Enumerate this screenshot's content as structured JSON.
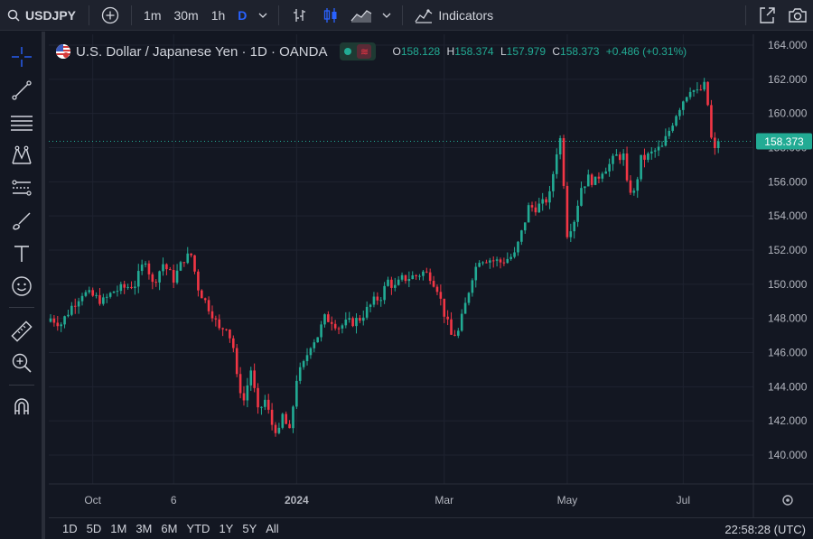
{
  "toolbar": {
    "symbol": "USDJPY",
    "intervals": [
      "1m",
      "30m",
      "1h",
      "D"
    ],
    "indicators_label": "Indicators"
  },
  "legend": {
    "title": "U.S. Dollar / Japanese Yen · 1D · OANDA",
    "open_label": "O",
    "open": "158.128",
    "high_label": "H",
    "high": "158.374",
    "low_label": "L",
    "low": "157.979",
    "close_label": "C",
    "close": "158.373",
    "change": "+0.486 (+0.31%)",
    "indicator_symbol": "≋"
  },
  "bottom": {
    "ranges": [
      "1D",
      "5D",
      "1M",
      "3M",
      "6M",
      "YTD",
      "1Y",
      "5Y",
      "All"
    ],
    "clock": "22:58:28 (UTC)"
  },
  "colors": {
    "up": "#22ab94",
    "down": "#f23645",
    "accent": "#2962ff",
    "price_label": "#22ab94"
  },
  "chart_data": {
    "type": "candlestick",
    "title": "U.S. Dollar / Japanese Yen · 1D · OANDA",
    "y_ticks": [
      "164.000",
      "162.000",
      "160.000",
      "158.000",
      "156.000",
      "154.000",
      "152.000",
      "150.000",
      "148.000",
      "146.000",
      "144.000",
      "142.000",
      "140.000"
    ],
    "ylim": [
      139,
      164.6
    ],
    "x_ticks": [
      "Oct",
      "6",
      "2024",
      "Mar",
      "May",
      "Jul"
    ],
    "x_tick_index": [
      12,
      35,
      70,
      112,
      147,
      180
    ],
    "last_price": "158.373",
    "last_value": 158.373,
    "series": {
      "name": "USDJPY",
      "close_path": [
        [
          0,
          148.0
        ],
        [
          3,
          147.7
        ],
        [
          6,
          148.7
        ],
        [
          9,
          149.5
        ],
        [
          12,
          149.3
        ],
        [
          15,
          149.0
        ],
        [
          18,
          149.6
        ],
        [
          21,
          149.8
        ],
        [
          24,
          150.0
        ],
        [
          27,
          151.5
        ],
        [
          29,
          150.0
        ],
        [
          32,
          151.2
        ],
        [
          35,
          150.3
        ],
        [
          38,
          151.5
        ],
        [
          40,
          151.7
        ],
        [
          42,
          149.8
        ],
        [
          44,
          149.0
        ],
        [
          46,
          148.3
        ],
        [
          48,
          147.3
        ],
        [
          50,
          147.6
        ],
        [
          52,
          146.3
        ],
        [
          53,
          144.5
        ],
        [
          55,
          143.2
        ],
        [
          57,
          145.0
        ],
        [
          59,
          142.5
        ],
        [
          61,
          143.2
        ],
        [
          63,
          141.8
        ],
        [
          65,
          141.3
        ],
        [
          66,
          142.3
        ],
        [
          68,
          141.3
        ],
        [
          70,
          144.5
        ],
        [
          72,
          145.3
        ],
        [
          74,
          146.5
        ],
        [
          76,
          147.0
        ],
        [
          78,
          148.0
        ],
        [
          80,
          147.9
        ],
        [
          82,
          147.5
        ],
        [
          84,
          147.7
        ],
        [
          86,
          147.8
        ],
        [
          88,
          148.0
        ],
        [
          90,
          148.5
        ],
        [
          92,
          149.0
        ],
        [
          94,
          149.3
        ],
        [
          96,
          150.2
        ],
        [
          98,
          149.8
        ],
        [
          100,
          150.3
        ],
        [
          102,
          150.4
        ],
        [
          104,
          150.5
        ],
        [
          106,
          150.7
        ],
        [
          108,
          150.5
        ],
        [
          110,
          149.8
        ],
        [
          112,
          148.3
        ],
        [
          114,
          147.0
        ],
        [
          116,
          147.2
        ],
        [
          118,
          148.8
        ],
        [
          120,
          150.5
        ],
        [
          122,
          151.5
        ],
        [
          124,
          151.5
        ],
        [
          126,
          151.4
        ],
        [
          128,
          151.3
        ],
        [
          130,
          151.5
        ],
        [
          132,
          151.7
        ],
        [
          134,
          153.0
        ],
        [
          136,
          154.5
        ],
        [
          138,
          154.5
        ],
        [
          140,
          154.7
        ],
        [
          142,
          155.2
        ],
        [
          144,
          157.8
        ],
        [
          145,
          158.5
        ],
        [
          146,
          156.0
        ],
        [
          147,
          153.0
        ],
        [
          149,
          153.8
        ],
        [
          151,
          155.7
        ],
        [
          153,
          156.2
        ],
        [
          155,
          156.0
        ],
        [
          157,
          156.7
        ],
        [
          159,
          157.0
        ],
        [
          161,
          157.5
        ],
        [
          163,
          157.5
        ],
        [
          164,
          155.8
        ],
        [
          166,
          155.3
        ],
        [
          168,
          157.3
        ],
        [
          170,
          157.5
        ],
        [
          172,
          157.8
        ],
        [
          174,
          158.0
        ],
        [
          176,
          159.0
        ],
        [
          178,
          160.0
        ],
        [
          180,
          160.8
        ],
        [
          182,
          161.5
        ],
        [
          184,
          161.2
        ],
        [
          186,
          161.6
        ],
        [
          187,
          160.5
        ],
        [
          188,
          158.5
        ],
        [
          189,
          157.8
        ],
        [
          190,
          158.373
        ]
      ]
    }
  }
}
